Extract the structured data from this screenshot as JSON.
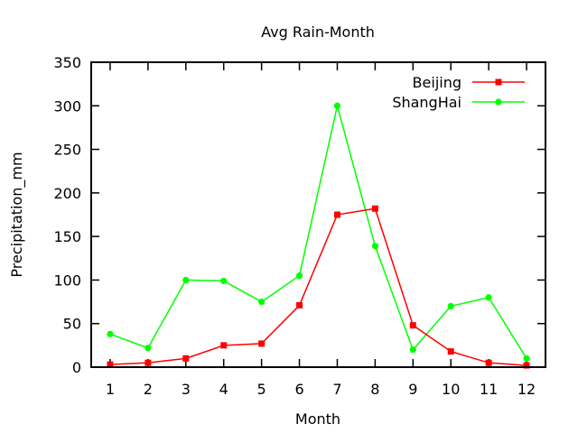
{
  "chart_data": {
    "type": "line",
    "title": "Avg Rain-Month",
    "xlabel": "Month",
    "ylabel": "Precipitation_mm",
    "x": [
      1,
      2,
      3,
      4,
      5,
      6,
      7,
      8,
      9,
      10,
      11,
      12
    ],
    "xlim": [
      0.5,
      12.5
    ],
    "ylim": [
      0,
      350
    ],
    "y_ticks": [
      0,
      50,
      100,
      150,
      200,
      250,
      300,
      350
    ],
    "grid": false,
    "legend_position": "top-right",
    "series": [
      {
        "name": "Beijing",
        "color": "#ff0000",
        "marker": "square",
        "values": [
          3,
          5,
          10,
          25,
          27,
          71,
          175,
          182,
          48,
          18,
          5,
          2
        ]
      },
      {
        "name": "ShangHai",
        "color": "#00ff00",
        "marker": "circle",
        "values": [
          38,
          22,
          100,
          99,
          75,
          105,
          300,
          139,
          20,
          70,
          80,
          10
        ]
      }
    ]
  }
}
